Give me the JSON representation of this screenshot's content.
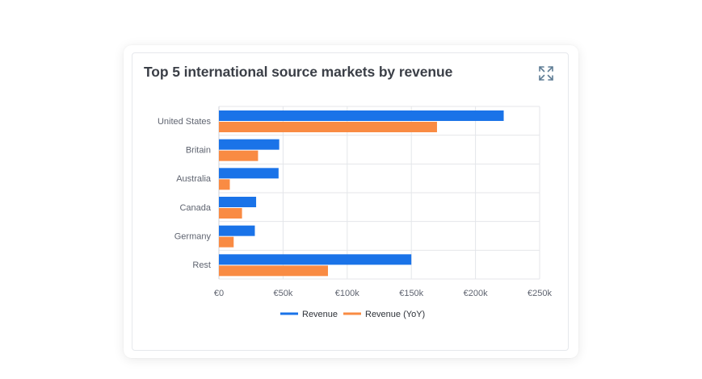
{
  "card": {
    "title": "Top 5 international source markets by revenue",
    "expand_icon": "expand-icon"
  },
  "colors": {
    "revenue": "#1a73e8",
    "revenue_yoy": "#f98b43",
    "grid": "#e4e6ea",
    "text": "#5f6470"
  },
  "chart_data": {
    "type": "bar",
    "orientation": "horizontal",
    "title": "Top 5 international source markets by revenue",
    "categories": [
      "United States",
      "Britain",
      "Australia",
      "Canada",
      "Germany",
      "Rest"
    ],
    "series": [
      {
        "name": "Revenue",
        "values": [
          222000,
          47000,
          46500,
          29000,
          28000,
          150000
        ]
      },
      {
        "name": "Revenue (YoY)",
        "values": [
          170000,
          30500,
          8500,
          18000,
          11500,
          85000
        ]
      }
    ],
    "xlim": [
      0,
      250000
    ],
    "xticks": [
      0,
      50000,
      100000,
      150000,
      200000,
      250000
    ],
    "xtick_labels": [
      "€0",
      "€50k",
      "€100k",
      "€150k",
      "€200k",
      "€250k"
    ],
    "xlabel": "",
    "ylabel": "",
    "grid": true,
    "legend_position": "bottom-center"
  }
}
